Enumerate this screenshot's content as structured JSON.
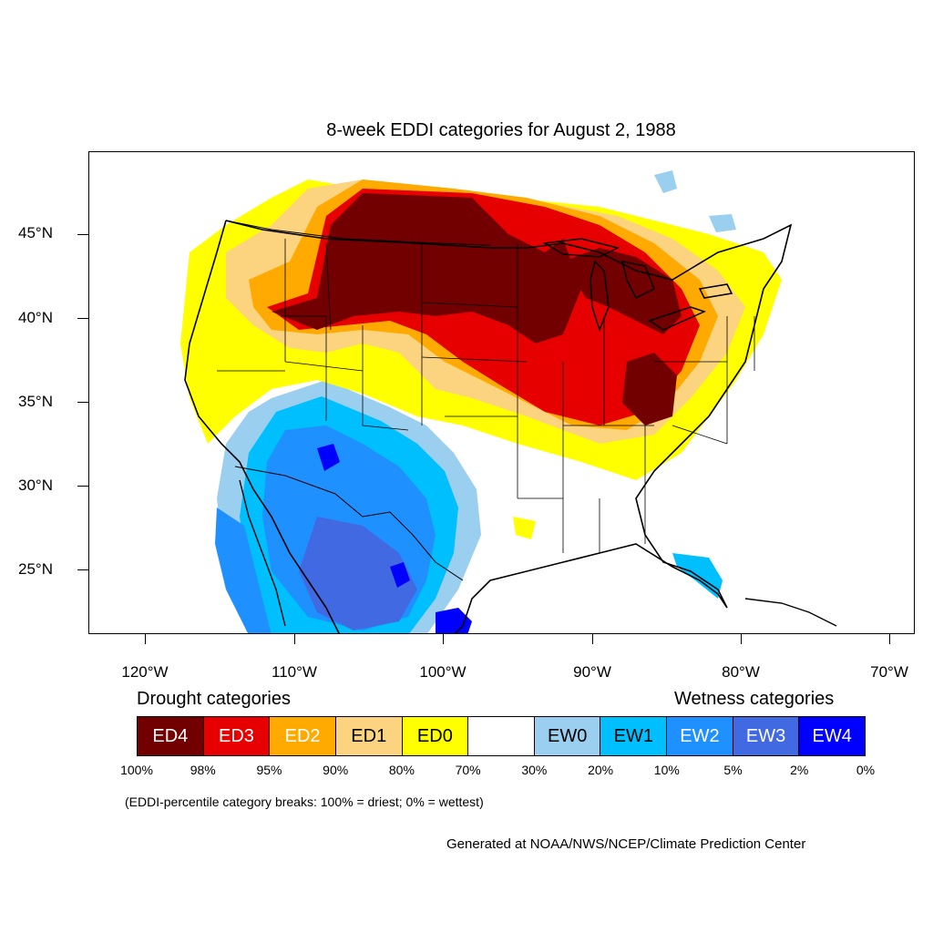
{
  "title": "8-week EDDI categories for August 2, 1988",
  "map": {
    "lat_labels": [
      "45°N",
      "40°N",
      "35°N",
      "30°N",
      "25°N"
    ],
    "lon_labels": [
      "120°W",
      "110°W",
      "100°W",
      "90°W",
      "80°W",
      "70°W"
    ],
    "lat_range": [
      21,
      49.5
    ],
    "lon_range": [
      -124,
      -68.5
    ],
    "colors": {
      "ED4": "#730000",
      "ED3": "#e60000",
      "ED2": "#ffaa00",
      "ED1": "#fcd37f",
      "ED0": "#ffff00",
      "Neutral": "#ffffff",
      "EW0": "#9bcfef",
      "EW1": "#00bfff",
      "EW2": "#1e90ff",
      "EW3": "#4169e1",
      "EW4": "#0000ff"
    }
  },
  "legend": {
    "drought_heading": "Drought categories",
    "wetness_heading": "Wetness categories",
    "cells": [
      {
        "label": "ED4",
        "color": "#730000",
        "text_color": "#ffffff"
      },
      {
        "label": "ED3",
        "color": "#e60000",
        "text_color": "#ffffff"
      },
      {
        "label": "ED2",
        "color": "#ffaa00",
        "text_color": "#ffffff"
      },
      {
        "label": "ED1",
        "color": "#fcd37f",
        "text_color": "#000000"
      },
      {
        "label": "ED0",
        "color": "#ffff00",
        "text_color": "#000000"
      },
      {
        "label": "",
        "color": "#ffffff",
        "text_color": "#000000"
      },
      {
        "label": "EW0",
        "color": "#9bcfef",
        "text_color": "#000000"
      },
      {
        "label": "EW1",
        "color": "#00bfff",
        "text_color": "#000000"
      },
      {
        "label": "EW2",
        "color": "#1e90ff",
        "text_color": "#ffffff"
      },
      {
        "label": "EW3",
        "color": "#4169e1",
        "text_color": "#ffffff"
      },
      {
        "label": "EW4",
        "color": "#0000ff",
        "text_color": "#ffffff"
      }
    ],
    "breaks": [
      "100%",
      "98%",
      "95%",
      "90%",
      "80%",
      "70%",
      "30%",
      "20%",
      "10%",
      "5%",
      "2%",
      "0%"
    ]
  },
  "note": "(EDDI-percentile category breaks: 100% = driest; 0% = wettest)",
  "credit": "Generated at NOAA/NWS/NCEP/Climate Prediction Center"
}
